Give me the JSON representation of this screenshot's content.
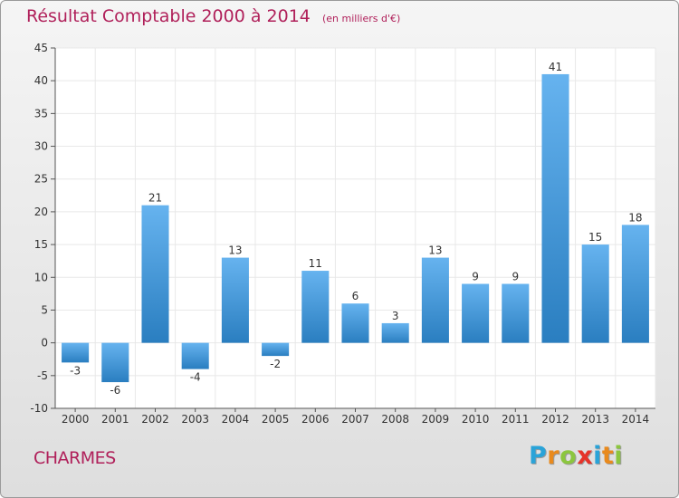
{
  "title": "Résultat Comptable 2000 à 2014",
  "subtitle": "(en milliers d'€)",
  "commune": "CHARMES",
  "logo": {
    "letters": [
      "P",
      "r",
      "o",
      "x",
      "i",
      "t",
      "i"
    ],
    "colors": [
      "#2aa3d8",
      "#e98a1d",
      "#8cc63f",
      "#e6332a",
      "#2aa3d8",
      "#e98a1d",
      "#8cc63f"
    ]
  },
  "colors": {
    "bar_light": "#66b3ef",
    "bar_dark": "#2a7ec0",
    "axis": "#555555",
    "grid": "#e8e8e8",
    "text": "#333333",
    "accent": "#b0205a"
  },
  "chart_data": {
    "type": "bar",
    "categories": [
      "2000",
      "2001",
      "2002",
      "2003",
      "2004",
      "2005",
      "2006",
      "2007",
      "2008",
      "2009",
      "2010",
      "2011",
      "2012",
      "2013",
      "2014"
    ],
    "values": [
      -3,
      -6,
      21,
      -4,
      13,
      -2,
      11,
      6,
      3,
      13,
      9,
      9,
      41,
      15,
      18
    ],
    "value_labels": [
      "-3",
      "-6",
      "21",
      "-4",
      "13",
      "-2",
      "11",
      "6",
      "3",
      "13",
      "9",
      "9",
      "41",
      "15",
      "18"
    ],
    "ylim": [
      -10,
      45
    ],
    "yticks": [
      -10,
      -5,
      0,
      5,
      10,
      15,
      20,
      25,
      30,
      35,
      40,
      45
    ],
    "ytick_labels": [
      "-10",
      "-5",
      "0",
      "5",
      "10",
      "15",
      "20",
      "25",
      "30",
      "35",
      "40",
      "45"
    ],
    "xlabel": "",
    "ylabel": "",
    "grid": true,
    "legend": "none"
  }
}
